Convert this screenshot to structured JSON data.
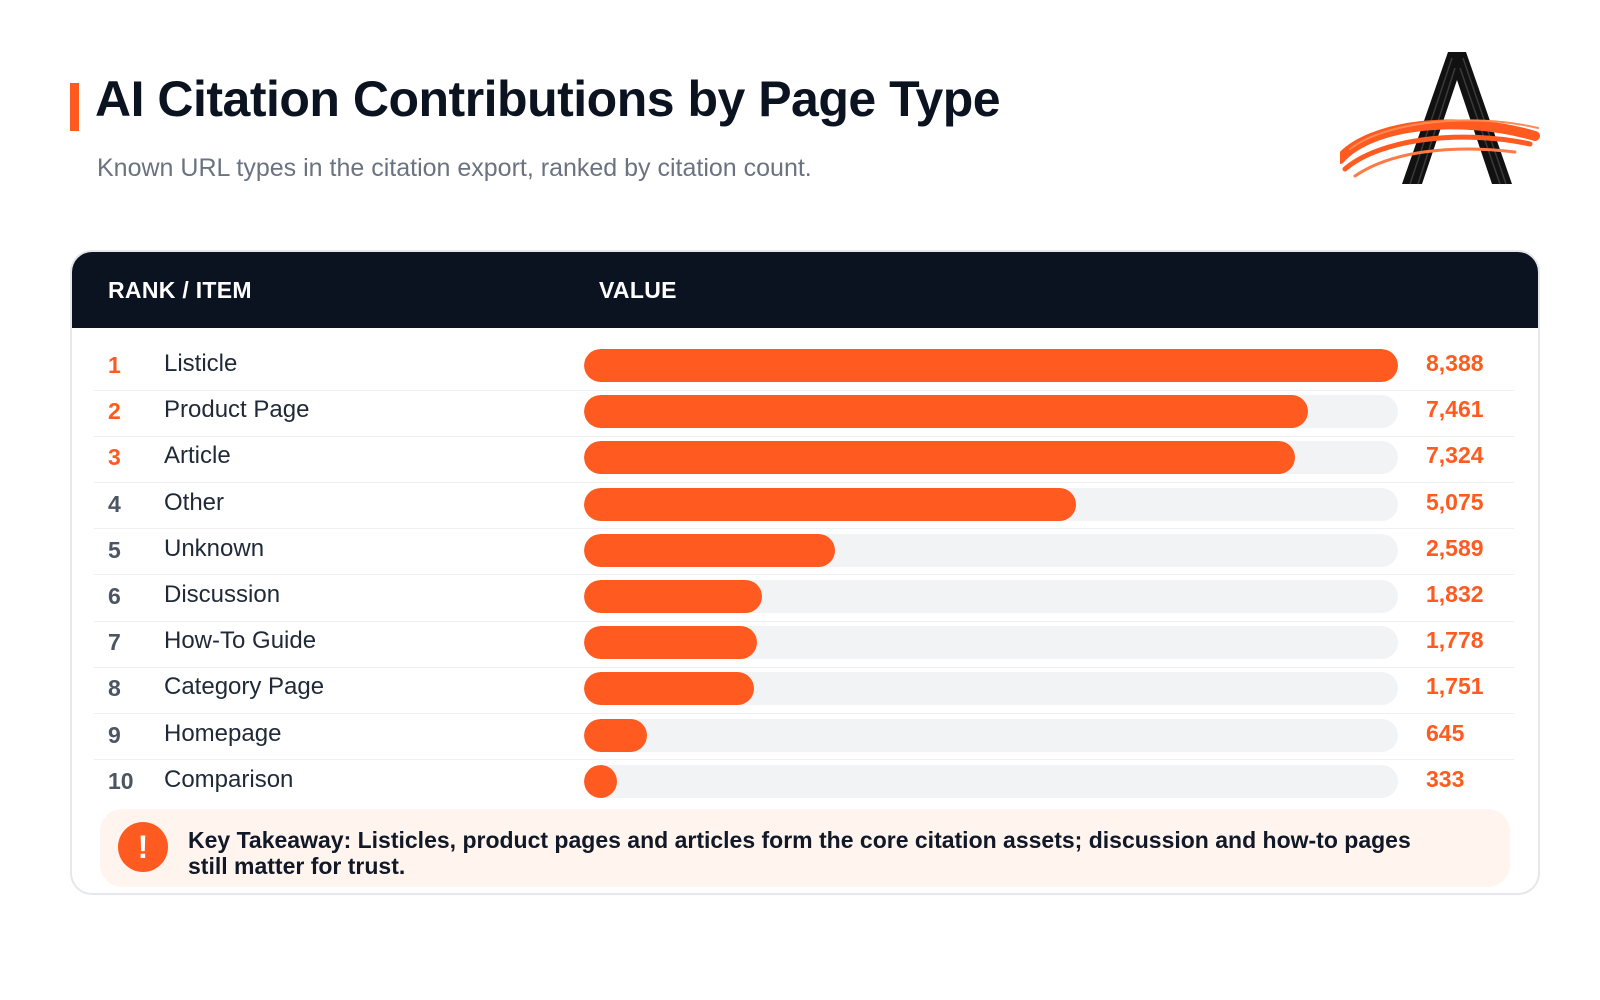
{
  "header": {
    "title": "AI Citation Contributions by Page Type",
    "subtitle": "Known URL types in the citation export, ranked by citation count."
  },
  "table": {
    "col_rank_item": "RANK / ITEM",
    "col_value": "VALUE"
  },
  "colors": {
    "accent": "#ff5a1f",
    "header_bg": "#0b1220",
    "track": "#f2f3f5"
  },
  "chart_data": {
    "type": "bar",
    "orientation": "horizontal",
    "categories": [
      "Listicle",
      "Product Page",
      "Article",
      "Other",
      "Unknown",
      "Discussion",
      "How-To Guide",
      "Category Page",
      "Homepage",
      "Comparison"
    ],
    "ranks": [
      "1",
      "2",
      "3",
      "4",
      "5",
      "6",
      "7",
      "8",
      "9",
      "10"
    ],
    "values": [
      8388,
      7461,
      7324,
      5075,
      2589,
      1832,
      1778,
      1751,
      645,
      333
    ],
    "value_labels": [
      "8,388",
      "7,461",
      "7,324",
      "5,075",
      "2,589",
      "1,832",
      "1,778",
      "1,751",
      "645",
      "333"
    ],
    "title": "AI Citation Contributions by Page Type",
    "grid": false,
    "legend": "none"
  },
  "takeaway": {
    "icon": "exclamation-icon",
    "text": "Key Takeaway: Listicles, product pages and articles form the core citation assets; discussion and how-to pages still matter for trust."
  }
}
